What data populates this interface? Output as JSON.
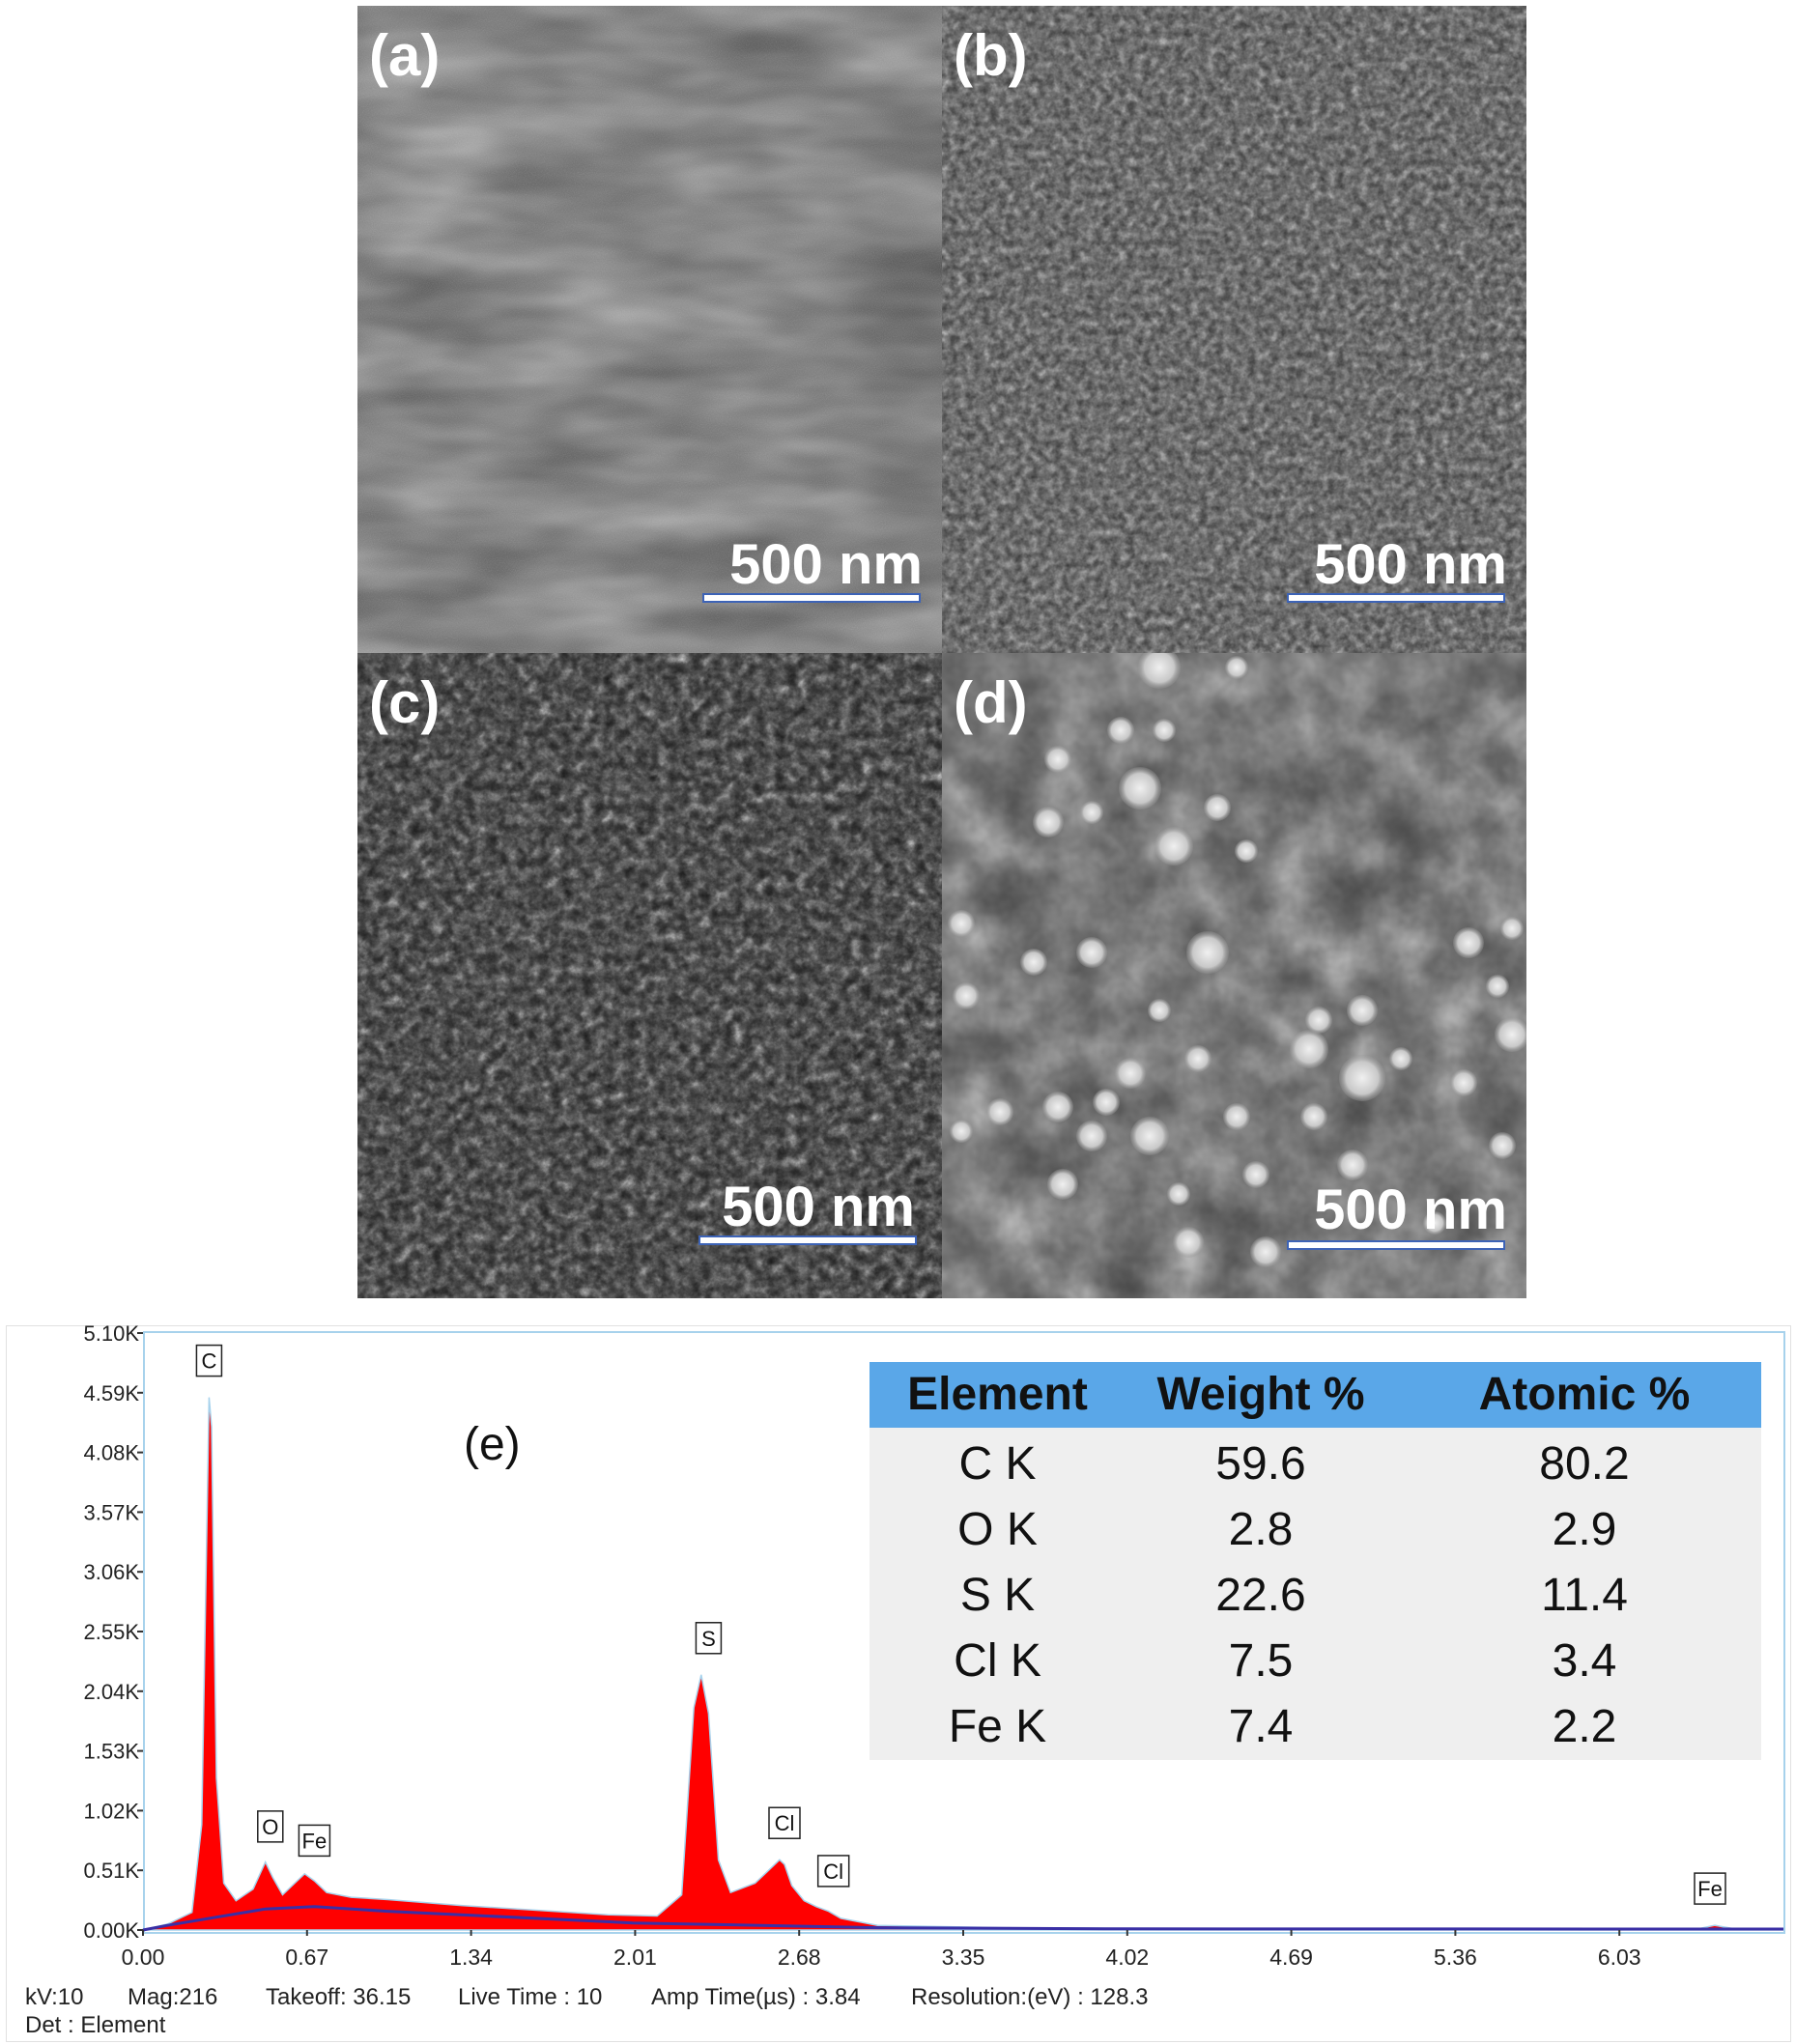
{
  "panels": [
    {
      "label": "(a)",
      "scale": "500 nm"
    },
    {
      "label": "(b)",
      "scale": "500 nm"
    },
    {
      "label": "(c)",
      "scale": "500 nm"
    },
    {
      "label": "(d)",
      "scale": "500 nm"
    }
  ],
  "eds": {
    "panel_label": "(e)",
    "peak_labels": [
      "C",
      "O",
      "Fe",
      "S",
      "Cl",
      "Cl",
      "Fe"
    ],
    "footer": {
      "kv": "kV:10",
      "mag": "Mag:216",
      "takeoff": "Takeoff: 36.15",
      "live_time": "Live Time : 10",
      "amp_time": "Amp Time(µs) : 3.84",
      "resolution": "Resolution:(eV) : 128.3",
      "det": "Det : Element"
    }
  },
  "table": {
    "headers": [
      "Element",
      "Weight %",
      "Atomic %"
    ],
    "rows": [
      [
        "C K",
        "59.6",
        "80.2"
      ],
      [
        "O K",
        "2.8",
        "2.9"
      ],
      [
        "S K",
        "22.6",
        "11.4"
      ],
      [
        "Cl K",
        "7.5",
        "3.4"
      ],
      [
        "Fe K",
        "7.4",
        "2.2"
      ]
    ]
  },
  "chart_data": {
    "type": "area",
    "title": "",
    "xlabel": "",
    "ylabel": "",
    "xlim": [
      0,
      6.7
    ],
    "ylim": [
      0,
      5100
    ],
    "x_ticks": [
      "0.00",
      "0.67",
      "1.34",
      "2.01",
      "2.68",
      "3.35",
      "4.02",
      "4.69",
      "5.36",
      "6.03"
    ],
    "y_ticks": [
      "0.00K",
      "0.51K",
      "1.02K",
      "1.53K",
      "2.04K",
      "2.55K",
      "3.06K",
      "3.57K",
      "4.08K",
      "4.59K",
      "5.10K"
    ],
    "series": [
      {
        "x": [
          0.0,
          0.1,
          0.2,
          0.24,
          0.27,
          0.28,
          0.3,
          0.33,
          0.38,
          0.45,
          0.5,
          0.53,
          0.57,
          0.62,
          0.66,
          0.7,
          0.75,
          0.85,
          1.0,
          1.3,
          1.6,
          1.9,
          2.1,
          2.2,
          2.25,
          2.28,
          2.31,
          2.35,
          2.4,
          2.5,
          2.55,
          2.6,
          2.62,
          2.65,
          2.7,
          2.75,
          2.8,
          2.85,
          3.0,
          3.5,
          4.0,
          5.0,
          6.0,
          6.35,
          6.42,
          6.5,
          6.7
        ],
        "y": [
          0,
          50,
          150,
          900,
          4550,
          4300,
          1300,
          400,
          250,
          350,
          580,
          450,
          300,
          400,
          480,
          420,
          320,
          280,
          260,
          210,
          170,
          130,
          120,
          300,
          1900,
          2180,
          1850,
          600,
          320,
          400,
          500,
          600,
          560,
          380,
          250,
          200,
          160,
          100,
          40,
          20,
          15,
          10,
          10,
          10,
          40,
          10,
          0
        ]
      }
    ],
    "annotations": [
      {
        "text": "C",
        "x": 0.27,
        "y": 4600
      },
      {
        "text": "O",
        "x": 0.52,
        "y": 620
      },
      {
        "text": "Fe",
        "x": 0.7,
        "y": 500
      },
      {
        "text": "S",
        "x": 2.31,
        "y": 2230
      },
      {
        "text": "Cl",
        "x": 2.62,
        "y": 650
      },
      {
        "text": "Cl",
        "x": 2.82,
        "y": 240
      },
      {
        "text": "Fe",
        "x": 6.4,
        "y": 90
      }
    ],
    "grid": false,
    "colors": {
      "fill": "#ff0000",
      "background_line": "#3a2fa5",
      "outline": "#a7d2ec"
    }
  }
}
